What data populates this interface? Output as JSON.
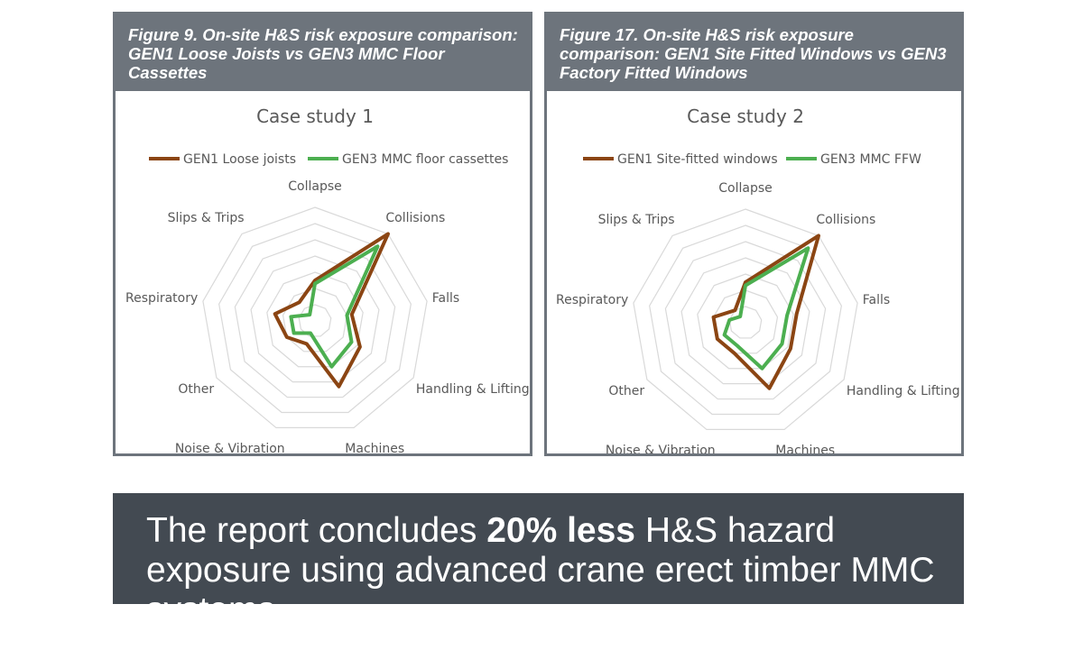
{
  "panels": [
    {
      "caption": "Figure 9. On-site H&S risk exposure comparison: GEN1 Loose Joists vs GEN3 MMC Floor Cassettes"
    },
    {
      "caption": "Figure 17. On-site H&S risk exposure comparison: GEN1 Site Fitted Windows vs GEN3 Factory Fitted Windows"
    }
  ],
  "banner": {
    "text_before": "The report concludes ",
    "highlight": "20% less",
    "text_after": " H&S hazard exposure using advanced crane erect timber MMC systems"
  },
  "chart_data": [
    {
      "type": "radar",
      "title": "Case study 1",
      "categories": [
        "Collapse",
        "Collisions",
        "Falls",
        "Handling & Lifting",
        "Machines",
        "Noise & Vibration",
        "Other",
        "Respiratory",
        "Slips & Trips"
      ],
      "rmax": 7,
      "grid_rings": 7,
      "legend_position": "top",
      "series": [
        {
          "name": "GEN1 Loose joists",
          "color": "#8B4513",
          "values": [
            2.5,
            7.0,
            2.3,
            3.2,
            4.3,
            1.5,
            2.0,
            2.5,
            1.5
          ]
        },
        {
          "name": "GEN3 MMC floor cassettes",
          "color": "#4CAF50",
          "values": [
            2.3,
            6.0,
            2.0,
            2.6,
            3.0,
            0.8,
            1.5,
            1.5,
            0.5
          ]
        }
      ]
    },
    {
      "type": "radar",
      "title": "Case study 2",
      "categories": [
        "Collapse",
        "Collisions",
        "Falls",
        "Handling & Lifting",
        "Machines",
        "Noise & Vibration",
        "Other",
        "Respiratory",
        "Slips & Trips"
      ],
      "rmax": 7,
      "grid_rings": 7,
      "legend_position": "top",
      "series": [
        {
          "name": "GEN1 Site-fitted windows",
          "color": "#8B4513",
          "values": [
            2.5,
            7.0,
            3.2,
            3.2,
            4.3,
            2.0,
            2.0,
            2.0,
            1.0
          ]
        },
        {
          "name": "GEN3 MMC FFW",
          "color": "#4CAF50",
          "values": [
            2.3,
            6.0,
            2.6,
            2.6,
            3.0,
            1.5,
            1.5,
            1.0,
            0.5
          ]
        }
      ]
    }
  ]
}
